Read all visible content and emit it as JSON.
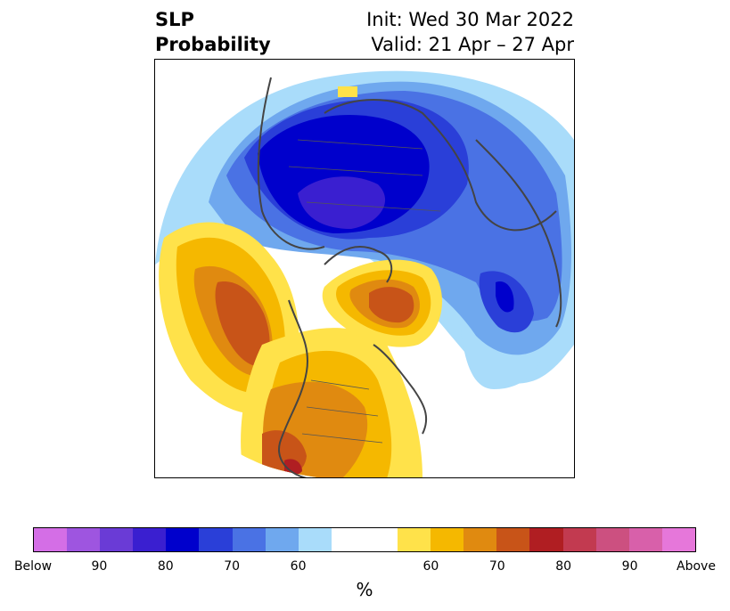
{
  "title": {
    "left_line1": "SLP",
    "left_line2": "Probability",
    "right_line1": "Init: Wed 30 Mar 2022",
    "right_line2": "Valid: 21 Apr – 27 Apr"
  },
  "colorbar": {
    "unit": "%",
    "tick_labels": [
      "Below",
      "90",
      "80",
      "70",
      "60",
      "60",
      "70",
      "80",
      "90",
      "Above"
    ],
    "colors": [
      "#d46ee6",
      "#9e55e0",
      "#6a3bd6",
      "#3a1fd0",
      "#0000cc",
      "#2a3fd8",
      "#4a72e4",
      "#6fa8ee",
      "#a9dcfa",
      "#ffffff",
      "#ffffff",
      "#ffe24a",
      "#f5b800",
      "#e08a10",
      "#c85418",
      "#b01e22",
      "#c23a50",
      "#cc5080",
      "#d860aa",
      "#e677da"
    ]
  },
  "map": {
    "region": "North Polar Stereographic",
    "features": [
      {
        "name": "below-core-asia",
        "color": "#0000cc"
      },
      {
        "name": "below-siberia",
        "color": "#4a72e4"
      },
      {
        "name": "above-pacific",
        "color": "#c85418"
      },
      {
        "name": "above-greenland",
        "color": "#c85418"
      },
      {
        "name": "above-north-america",
        "color": "#e08a10"
      }
    ]
  }
}
